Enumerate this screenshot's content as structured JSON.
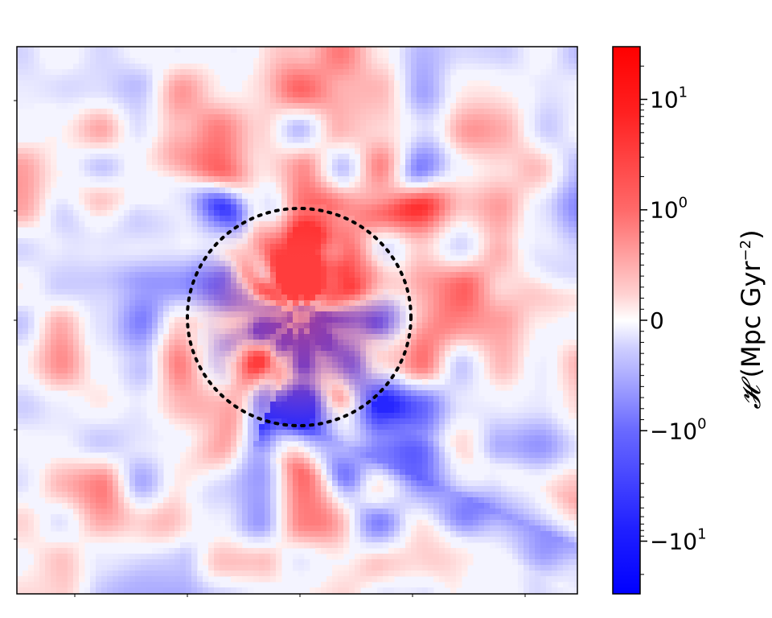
{
  "chart_data": {
    "type": "heatmap",
    "title": "",
    "xlabel": "",
    "ylabel": "",
    "colormap": "bwr",
    "colormap_colors": {
      "min": "#0000ff",
      "mid": "#ffffff",
      "max": "#ff0000"
    },
    "scale": "symlog",
    "symlog_linthresh": 1,
    "value_range": [
      -30,
      30
    ],
    "colorbar": {
      "label_symbol": "𝓗",
      "label_units": "(Mpc Gyr",
      "label_units_exp": "−2",
      "label_units_close": ")",
      "ticks": [
        {
          "value": 10,
          "base": "10",
          "exp": "1"
        },
        {
          "value": 1,
          "base": "10",
          "exp": "0"
        },
        {
          "value": 0,
          "base": "0",
          "exp": ""
        },
        {
          "value": -1,
          "base": "−10",
          "exp": "0"
        },
        {
          "value": -10,
          "base": "−10",
          "exp": "1"
        }
      ]
    },
    "overlay": {
      "shape": "circle",
      "style": "dotted",
      "color": "#000000"
    },
    "grid": false
  }
}
